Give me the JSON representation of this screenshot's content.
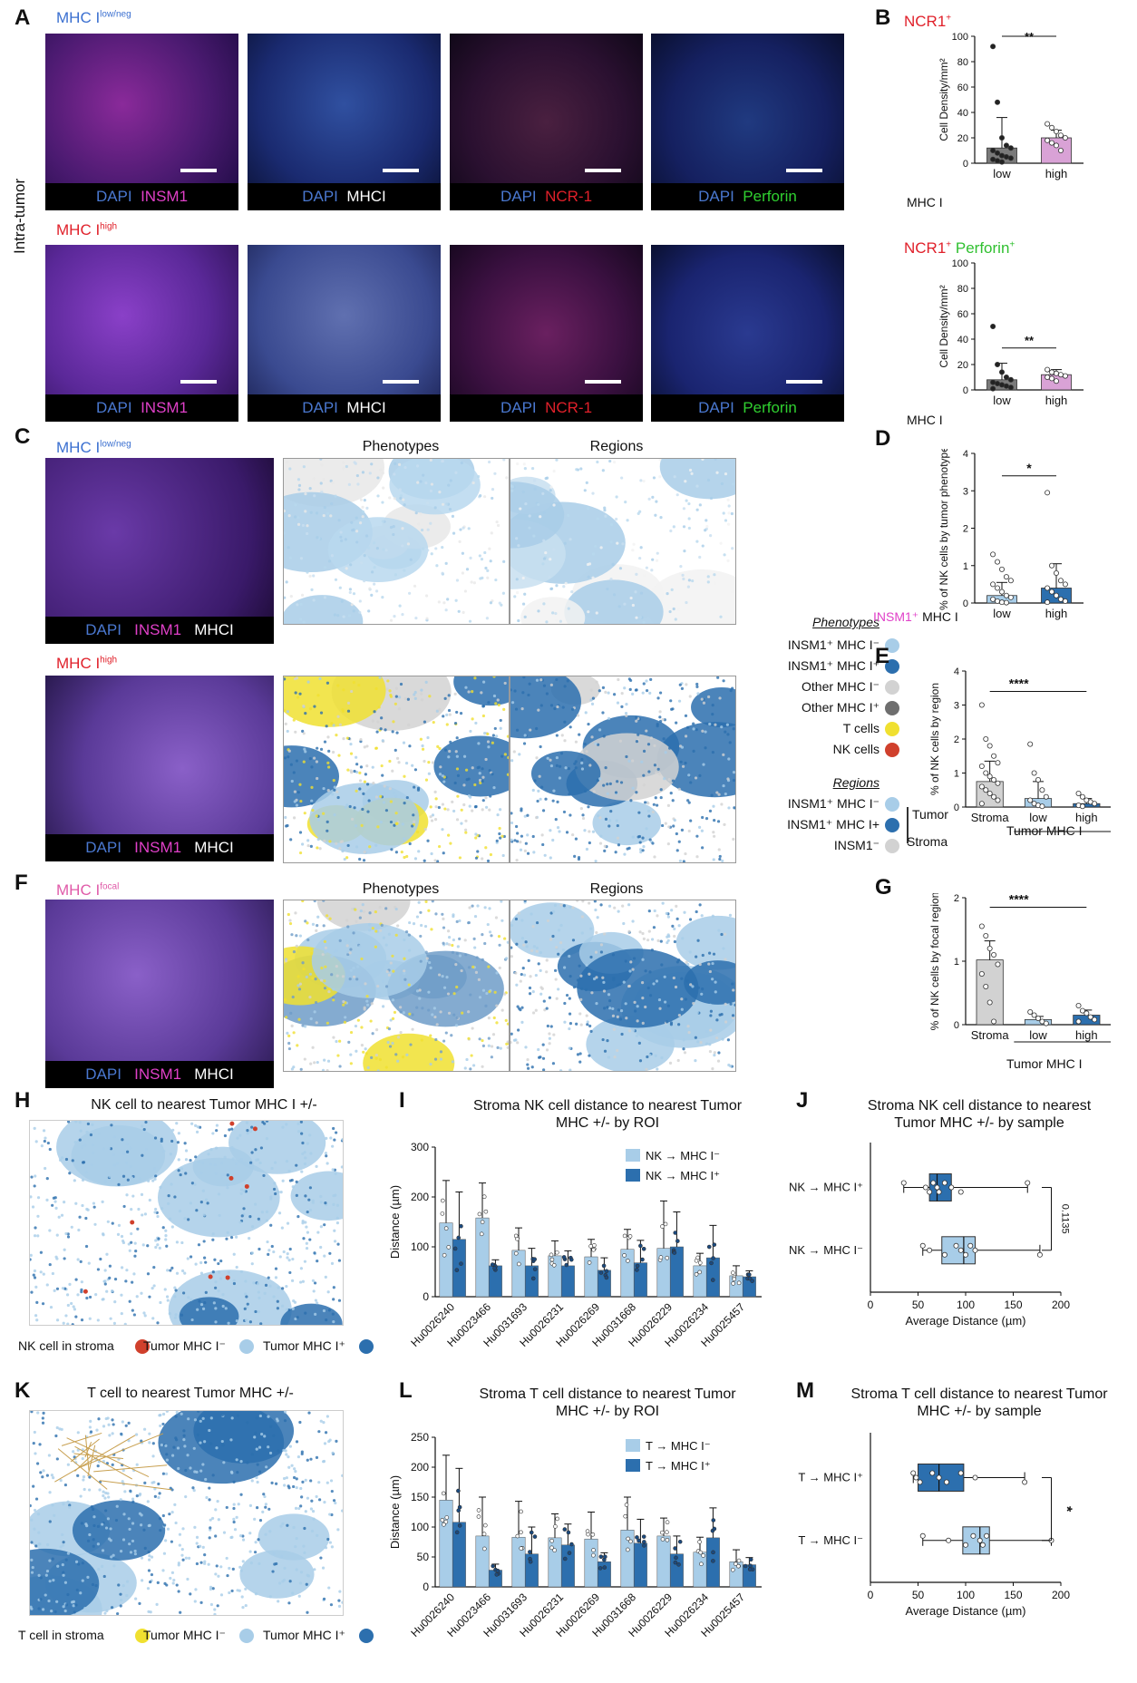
{
  "panels": {
    "A": "A",
    "B": "B",
    "C": "C",
    "D": "D",
    "E": "E",
    "F": "F",
    "G": "G",
    "H": "H",
    "I": "I",
    "J": "J",
    "K": "K",
    "L": "L",
    "M": "M"
  },
  "panelA": {
    "side_label": "Intra-tumor",
    "row1_title": "MHC I",
    "row1_sup": "low/neg",
    "row2_title": "MHC I",
    "row2_sup": "high",
    "stains": [
      {
        "dapi": "DAPI",
        "marker": "INSM1",
        "color": "#e040c8"
      },
      {
        "dapi": "DAPI",
        "marker": "MHCI",
        "color": "#ffffff"
      },
      {
        "dapi": "DAPI",
        "marker": "NCR-1",
        "color": "#e0202a"
      },
      {
        "dapi": "DAPI",
        "marker": "Perforin",
        "color": "#30d030"
      }
    ],
    "colors": {
      "low_title": "#3a6fd0",
      "high_title": "#e0202a",
      "dapi": "#4a78d0"
    }
  },
  "panelB": {
    "top_title": "NCR1",
    "top_title_sup": "+",
    "bottom_title_1": "NCR1",
    "bottom_title_1_sup": "+",
    "bottom_title_2": "Perforin",
    "bottom_title_2_sup": "+",
    "sig": "**",
    "group_label": "MHC I"
  },
  "panelC": {
    "row1_title": "MHC I",
    "row1_sup": "low/neg",
    "row2_title": "MHC I",
    "row2_sup": "high",
    "col_phenotypes": "Phenotypes",
    "col_regions": "Regions",
    "caption": [
      "DAPI",
      "INSM1",
      "MHCI"
    ]
  },
  "legend": {
    "phenotypes_title": "Phenotypes",
    "phenotypes": [
      {
        "label": "INSM1⁺ MHC I⁻",
        "color": "#a8cde8"
      },
      {
        "label": "INSM1⁺ MHC I⁺",
        "color": "#2c6fae"
      },
      {
        "label": "Other MHC I⁻",
        "color": "#d2d2d2"
      },
      {
        "label": "Other MHC I⁺",
        "color": "#6e6e6e"
      },
      {
        "label": "T cells",
        "color": "#f0e030"
      },
      {
        "label": "NK cells",
        "color": "#d0402c"
      }
    ],
    "regions_title": "Regions",
    "regions": [
      {
        "label": "INSM1⁺ MHC I⁻",
        "color": "#a8cde8"
      },
      {
        "label": "INSM1⁺ MHC I+",
        "color": "#2c6fae"
      },
      {
        "label": "INSM1⁻",
        "color": "#d2d2d2"
      }
    ],
    "tumor": "Tumor",
    "stroma": "Stroma"
  },
  "panelF": {
    "title": "MHC I",
    "sup": "focal",
    "col_phenotypes": "Phenotypes",
    "col_regions": "Regions",
    "caption": [
      "DAPI",
      "INSM1",
      "MHCI"
    ]
  },
  "panelD": {
    "group_prefix": "INSM1⁺",
    "group_suffix": "MHC I",
    "sig": "*"
  },
  "panelE": {
    "sig": "****",
    "group": "Tumor MHC I"
  },
  "panelG": {
    "sig": "****",
    "group": "Tumor MHC I"
  },
  "panelH": {
    "title": "NK cell to nearest Tumor MHC I +/-",
    "legend": [
      {
        "label": "NK cell in stroma",
        "color": "#d0402c"
      },
      {
        "label": "Tumor MHC I⁻",
        "color": "#a8cde8"
      },
      {
        "label": "Tumor MHC I⁺",
        "color": "#2c6fae"
      }
    ]
  },
  "panelK": {
    "title": "T cell to nearest Tumor MHC +/-",
    "legend": [
      {
        "label": "T cell in stroma",
        "color": "#f0e030"
      },
      {
        "label": "Tumor MHC I⁻",
        "color": "#a8cde8"
      },
      {
        "label": "Tumor MHC I⁺",
        "color": "#2c6fae"
      }
    ]
  },
  "panelI": {
    "title_1": "Stroma NK cell distance to nearest Tumor",
    "title_2": "MHC +/- by ROI"
  },
  "panelJ": {
    "title_1": "Stroma NK cell distance to nearest",
    "title_2": "Tumor MHC +/- by sample",
    "pvalue": "0.1135"
  },
  "panelL": {
    "title_1": "Stroma T cell distance to nearest Tumor",
    "title_2": "MHC +/- by ROI"
  },
  "panelM": {
    "title_1": "Stroma T cell distance to nearest Tumor",
    "title_2": "MHC +/- by sample",
    "sig": "*"
  },
  "chart_data": [
    {
      "id": "B_top",
      "type": "bar",
      "ylabel": "Cell Density/mm²",
      "ylim": [
        0,
        100
      ],
      "yticks": [
        0,
        20,
        40,
        60,
        80,
        100
      ],
      "categories": [
        "low",
        "high"
      ],
      "values": [
        12,
        20
      ],
      "errors": [
        24,
        6
      ],
      "colors": [
        "#7a7a7a",
        "#d9a2d6"
      ],
      "points": [
        [
          92,
          48,
          20,
          14,
          12,
          10,
          8,
          6,
          5,
          4,
          3,
          2,
          1
        ],
        [
          31,
          28,
          25,
          22,
          20,
          18,
          16,
          14,
          10
        ]
      ],
      "sig": "**"
    },
    {
      "id": "B_bottom",
      "type": "bar",
      "ylabel": "Cell Density/mm²",
      "ylim": [
        0,
        100
      ],
      "yticks": [
        0,
        20,
        40,
        60,
        80,
        100
      ],
      "categories": [
        "low",
        "high"
      ],
      "values": [
        8,
        12
      ],
      "errors": [
        13,
        4
      ],
      "colors": [
        "#7a7a7a",
        "#d9a2d6"
      ],
      "points": [
        [
          50,
          20,
          14,
          10,
          8,
          6,
          5,
          4,
          3,
          2,
          1
        ],
        [
          16,
          14,
          13,
          12,
          11,
          10,
          9,
          7
        ]
      ],
      "sig": "**"
    },
    {
      "id": "D",
      "type": "bar",
      "ylabel": "% of NK cells by tumor phenotype",
      "ylim": [
        0,
        4
      ],
      "yticks": [
        0,
        1,
        2,
        3,
        4
      ],
      "categories": [
        "low",
        "high"
      ],
      "values": [
        0.2,
        0.4
      ],
      "errors": [
        0.35,
        0.65
      ],
      "colors": [
        "#a8cde8",
        "#2c6fae"
      ],
      "points": [
        [
          1.3,
          1.1,
          0.9,
          0.7,
          0.6,
          0.5,
          0.4,
          0.3,
          0.2,
          0.15,
          0.1,
          0.05,
          0.02,
          0.01
        ],
        [
          2.95,
          1.0,
          0.8,
          0.6,
          0.5,
          0.4,
          0.3,
          0.2,
          0.1,
          0.05,
          0.02
        ]
      ],
      "sig": "*"
    },
    {
      "id": "E",
      "type": "bar",
      "ylabel": "% of NK cells by region",
      "ylim": [
        0,
        4
      ],
      "yticks": [
        0,
        1,
        2,
        3,
        4
      ],
      "categories": [
        "Stroma",
        "low",
        "high"
      ],
      "values": [
        0.75,
        0.25,
        0.1
      ],
      "errors": [
        0.6,
        0.5,
        0.15
      ],
      "colors": [
        "#d2d2d2",
        "#a8cde8",
        "#2c6fae"
      ],
      "points": [
        [
          3.0,
          2.0,
          1.8,
          1.5,
          1.3,
          1.2,
          1.0,
          0.9,
          0.8,
          0.7,
          0.6,
          0.5,
          0.4,
          0.3,
          0.2,
          0.1
        ],
        [
          1.85,
          1.0,
          0.8,
          0.5,
          0.3,
          0.2,
          0.1,
          0.05,
          0.02
        ],
        [
          0.4,
          0.3,
          0.2,
          0.15,
          0.1,
          0.05,
          0.02
        ]
      ],
      "sig": "****"
    },
    {
      "id": "G",
      "type": "bar",
      "ylabel": "% of NK cells by focal region",
      "ylim": [
        0,
        2
      ],
      "yticks": [
        0,
        1,
        2
      ],
      "categories": [
        "Stroma",
        "low",
        "high"
      ],
      "values": [
        1.02,
        0.08,
        0.15
      ],
      "errors": [
        0.3,
        0.05,
        0.08
      ],
      "colors": [
        "#d2d2d2",
        "#a8cde8",
        "#2c6fae"
      ],
      "points": [
        [
          1.55,
          1.4,
          1.2,
          1.1,
          0.95,
          0.8,
          0.6,
          0.35,
          0.05
        ],
        [
          0.2,
          0.15,
          0.1,
          0.05,
          0.02
        ],
        [
          0.3,
          0.22,
          0.18,
          0.12,
          0.08,
          0.05
        ]
      ],
      "sig": "****"
    },
    {
      "id": "I",
      "type": "bar",
      "ylabel": "Distance (µm)",
      "ylim": [
        0,
        300
      ],
      "yticks": [
        0,
        100,
        200,
        300
      ],
      "categories": [
        "Hu0026240",
        "Hu0023466",
        "Hu0031693",
        "Hu0026231",
        "Hu0026269",
        "Hu0031668",
        "Hu0026229",
        "Hu0026234",
        "Hu0025457"
      ],
      "series": [
        {
          "name": "NK → MHC I⁻",
          "color": "#a8cde8",
          "values": [
            148,
            158,
            93,
            82,
            80,
            95,
            97,
            62,
            42
          ],
          "errors": [
            85,
            70,
            45,
            30,
            35,
            40,
            95,
            25,
            20
          ]
        },
        {
          "name": "NK → MHC I⁺",
          "color": "#2c6fae",
          "values": [
            115,
            62,
            62,
            62,
            53,
            68,
            100,
            78,
            40
          ],
          "errors": [
            95,
            12,
            35,
            30,
            25,
            45,
            70,
            65,
            12
          ]
        }
      ]
    },
    {
      "id": "J",
      "type": "box",
      "xlabel": "Average Distance (µm)",
      "xlim": [
        0,
        200
      ],
      "xticks": [
        0,
        50,
        100,
        150,
        200
      ],
      "categories": [
        "NK → MHC I⁺",
        "NK → MHC I⁻"
      ],
      "boxes": [
        {
          "min": 35,
          "q1": 62,
          "median": 70,
          "q3": 85,
          "max": 165,
          "color": "#2c6fae",
          "points": [
            35,
            58,
            62,
            66,
            70,
            72,
            78,
            85,
            95,
            165
          ]
        },
        {
          "min": 55,
          "q1": 75,
          "median": 98,
          "q3": 110,
          "max": 178,
          "color": "#a8cde8",
          "points": [
            55,
            62,
            78,
            90,
            95,
            100,
            105,
            110,
            178
          ]
        }
      ],
      "pvalue": "0.1135"
    },
    {
      "id": "L",
      "type": "bar",
      "ylabel": "Distance (µm)",
      "ylim": [
        0,
        250
      ],
      "yticks": [
        0,
        50,
        100,
        150,
        200,
        250
      ],
      "categories": [
        "Hu0026240",
        "Hu0023466",
        "Hu0031693",
        "Hu0026231",
        "Hu0026269",
        "Hu0031668",
        "Hu0026229",
        "Hu0026234",
        "Hu0025457"
      ],
      "series": [
        {
          "name": "T → MHC I⁻",
          "color": "#a8cde8",
          "values": [
            145,
            85,
            83,
            82,
            80,
            95,
            85,
            58,
            42
          ],
          "errors": [
            75,
            65,
            60,
            40,
            45,
            55,
            30,
            25,
            20
          ]
        },
        {
          "name": "T → MHC I⁺",
          "color": "#2c6fae",
          "values": [
            108,
            28,
            55,
            70,
            42,
            73,
            55,
            82,
            37
          ],
          "errors": [
            90,
            10,
            45,
            35,
            15,
            40,
            30,
            50,
            12
          ]
        }
      ]
    },
    {
      "id": "M",
      "type": "box",
      "xlabel": "Average Distance (µm)",
      "xlim": [
        0,
        200
      ],
      "xticks": [
        0,
        50,
        100,
        150,
        200
      ],
      "categories": [
        "T → MHC I⁺",
        "T → MHC I⁻"
      ],
      "boxes": [
        {
          "min": 45,
          "q1": 50,
          "median": 72,
          "q3": 98,
          "max": 162,
          "color": "#2c6fae",
          "points": [
            45,
            48,
            52,
            65,
            72,
            80,
            95,
            110,
            162
          ]
        },
        {
          "min": 55,
          "q1": 97,
          "median": 115,
          "q3": 125,
          "max": 190,
          "color": "#a8cde8",
          "points": [
            55,
            82,
            100,
            108,
            115,
            118,
            122,
            190
          ]
        }
      ],
      "sig": "*"
    }
  ]
}
